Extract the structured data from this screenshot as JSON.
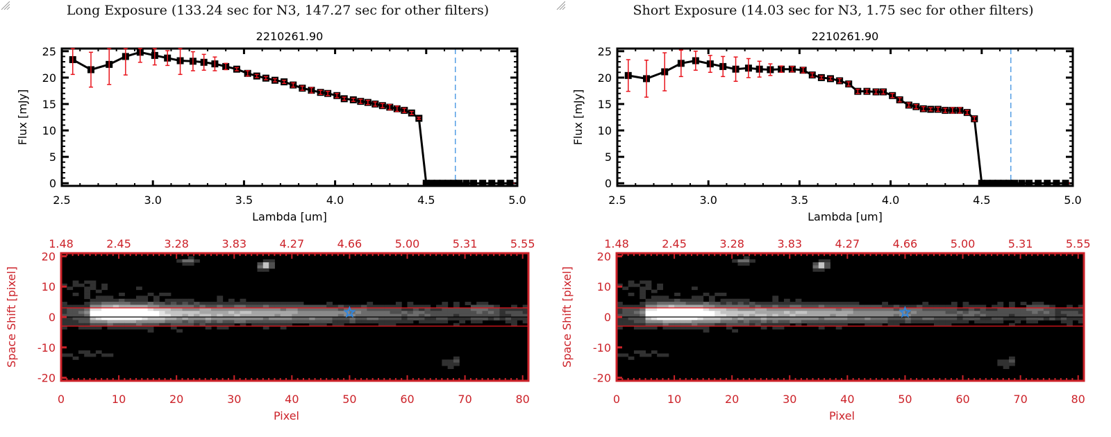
{
  "panels": [
    {
      "id": "long",
      "exposure_title": "Long Exposure (133.24 sec for N3, 147.27 sec for other filters)",
      "source_id": "2210261.90"
    },
    {
      "id": "short",
      "exposure_title": "Short Exposure (14.03 sec for N3, 1.75 sec for other filters)",
      "source_id": "2210261.90"
    }
  ],
  "colors": {
    "line": "#000000",
    "error_bar": "#e8141c",
    "vline": "#3a8fe0",
    "image_frame": "#cc2229",
    "extraction_box": "#e8141c",
    "star": "#2e86e0"
  },
  "chart_data": [
    {
      "type": "line",
      "panel": "long",
      "title": "2210261.90",
      "xlabel": "Lambda [um]",
      "ylabel": "Flux [mJy]",
      "xlim": [
        2.5,
        5.0
      ],
      "ylim": [
        -0.5,
        25.5
      ],
      "xticks": [
        "2.5",
        "3.0",
        "3.5",
        "4.0",
        "4.5",
        "5.0"
      ],
      "xtick_values": [
        2.5,
        3.0,
        3.5,
        4.0,
        4.5,
        5.0
      ],
      "yticks": [
        "0",
        "5",
        "10",
        "15",
        "20",
        "25"
      ],
      "ytick_values": [
        0,
        5,
        10,
        15,
        20,
        25
      ],
      "vline_x": 4.66,
      "zero_dashed": true,
      "x": [
        2.56,
        2.66,
        2.76,
        2.85,
        2.93,
        3.01,
        3.08,
        3.15,
        3.22,
        3.28,
        3.34,
        3.4,
        3.46,
        3.52,
        3.57,
        3.62,
        3.67,
        3.72,
        3.77,
        3.82,
        3.87,
        3.92,
        3.96,
        4.01,
        4.05,
        4.1,
        4.14,
        4.18,
        4.22,
        4.26,
        4.3,
        4.34,
        4.38,
        4.42,
        4.46,
        4.5,
        4.53,
        4.56,
        4.59,
        4.62,
        4.65,
        4.68,
        4.72,
        4.76,
        4.81,
        4.86,
        4.91,
        4.96
      ],
      "y": [
        23.4,
        21.5,
        22.5,
        24.0,
        24.8,
        24.2,
        23.7,
        23.2,
        23.1,
        22.9,
        22.6,
        22.1,
        21.6,
        20.8,
        20.3,
        19.9,
        19.5,
        19.2,
        18.6,
        18.0,
        17.6,
        17.2,
        17.0,
        16.6,
        16.0,
        15.8,
        15.5,
        15.3,
        15.0,
        14.7,
        14.4,
        14.1,
        13.8,
        13.3,
        12.3,
        0,
        0,
        0,
        0,
        0,
        0,
        0,
        0,
        0,
        0,
        0,
        0,
        0
      ],
      "yerr": [
        2.8,
        3.3,
        3.8,
        3.5,
        1.9,
        1.8,
        1.4,
        2.6,
        1.8,
        1.5,
        1.3,
        0.6,
        0.3,
        0.5,
        0.3,
        0.3,
        0.3,
        0.3,
        0.4,
        0.4,
        0.5,
        0.4,
        0.4,
        0.4,
        0.3,
        0.3,
        0.4,
        0.4,
        0.4,
        0.4,
        0.5,
        0.5,
        0.4,
        0.3,
        0.2,
        0,
        0,
        0,
        0,
        0,
        0,
        0,
        0,
        0,
        0,
        0,
        0,
        0
      ]
    },
    {
      "type": "line",
      "panel": "short",
      "title": "2210261.90",
      "xlabel": "Lambda [um]",
      "ylabel": "Flux [mJy]",
      "xlim": [
        2.5,
        5.0
      ],
      "ylim": [
        -0.5,
        25.5
      ],
      "xticks": [
        "2.5",
        "3.0",
        "3.5",
        "4.0",
        "4.5",
        "5.0"
      ],
      "xtick_values": [
        2.5,
        3.0,
        3.5,
        4.0,
        4.5,
        5.0
      ],
      "yticks": [
        "0",
        "5",
        "10",
        "15",
        "20",
        "25"
      ],
      "ytick_values": [
        0,
        5,
        10,
        15,
        20,
        25
      ],
      "vline_x": 4.66,
      "zero_dashed": true,
      "x": [
        2.56,
        2.66,
        2.76,
        2.85,
        2.93,
        3.01,
        3.08,
        3.15,
        3.22,
        3.28,
        3.34,
        3.4,
        3.46,
        3.52,
        3.57,
        3.62,
        3.67,
        3.72,
        3.77,
        3.82,
        3.87,
        3.92,
        3.96,
        4.01,
        4.05,
        4.1,
        4.14,
        4.18,
        4.22,
        4.26,
        4.3,
        4.34,
        4.38,
        4.42,
        4.46,
        4.5,
        4.53,
        4.56,
        4.59,
        4.62,
        4.65,
        4.68,
        4.72,
        4.76,
        4.81,
        4.86,
        4.91,
        4.96
      ],
      "y": [
        20.4,
        19.8,
        21.1,
        22.7,
        23.2,
        22.6,
        22.1,
        21.6,
        21.8,
        21.6,
        21.5,
        21.6,
        21.6,
        21.4,
        20.5,
        20.0,
        19.8,
        19.4,
        18.8,
        17.4,
        17.4,
        17.3,
        17.3,
        16.6,
        15.8,
        14.8,
        14.5,
        14.1,
        14.0,
        14.0,
        13.8,
        13.8,
        13.8,
        13.4,
        12.2,
        0,
        0,
        0,
        0,
        0,
        0,
        0,
        0,
        0,
        0,
        0,
        0,
        0
      ],
      "yerr": [
        3.0,
        3.5,
        3.6,
        2.5,
        1.8,
        1.6,
        1.9,
        2.3,
        1.8,
        1.5,
        1.1,
        0.6,
        0.5,
        0.5,
        0.4,
        0.3,
        0.3,
        0.4,
        0.4,
        0.4,
        0.4,
        0.4,
        0.4,
        0.4,
        0.4,
        0.4,
        0.4,
        0.4,
        0.3,
        0.4,
        0.4,
        0.5,
        0.5,
        0.4,
        0.4,
        0,
        0,
        0,
        0,
        0,
        0,
        0,
        0,
        0,
        0,
        0,
        0,
        0
      ]
    },
    {
      "type": "heatmap",
      "panel": "long",
      "xlabel": "Pixel",
      "ylabel": "Space Shift [pixel]",
      "xlim": [
        0,
        81
      ],
      "ylim": [
        -21,
        21
      ],
      "xticks": [
        "0",
        "10",
        "20",
        "30",
        "40",
        "50",
        "60",
        "70",
        "80"
      ],
      "xtick_values": [
        0,
        10,
        20,
        30,
        40,
        50,
        60,
        70,
        80
      ],
      "yticks": [
        "-20",
        "-10",
        "0",
        "10",
        "20"
      ],
      "ytick_values": [
        -20,
        -10,
        0,
        10,
        20
      ],
      "top_axis_label_values": [
        "1.48",
        "2.45",
        "3.28",
        "3.83",
        "4.27",
        "4.66",
        "5.00",
        "5.31",
        "5.55"
      ],
      "extraction_box_y": [
        -3,
        3
      ],
      "center_line_y": 0,
      "star_marker": {
        "x": 50,
        "y": 1.5
      }
    },
    {
      "type": "heatmap",
      "panel": "short",
      "xlabel": "Pixel",
      "ylabel": "Space Shift [pixel]",
      "xlim": [
        0,
        81
      ],
      "ylim": [
        -21,
        21
      ],
      "xticks": [
        "0",
        "10",
        "20",
        "30",
        "40",
        "50",
        "60",
        "70",
        "80"
      ],
      "xtick_values": [
        0,
        10,
        20,
        30,
        40,
        50,
        60,
        70,
        80
      ],
      "yticks": [
        "-20",
        "-10",
        "0",
        "10",
        "20"
      ],
      "ytick_values": [
        -20,
        -10,
        0,
        10,
        20
      ],
      "top_axis_label_values": [
        "1.48",
        "2.45",
        "3.28",
        "3.83",
        "4.27",
        "4.66",
        "5.00",
        "5.31",
        "5.55"
      ],
      "extraction_box_y": [
        -3,
        3
      ],
      "center_line_y": 0,
      "star_marker": {
        "x": 50,
        "y": 1.5
      }
    }
  ]
}
